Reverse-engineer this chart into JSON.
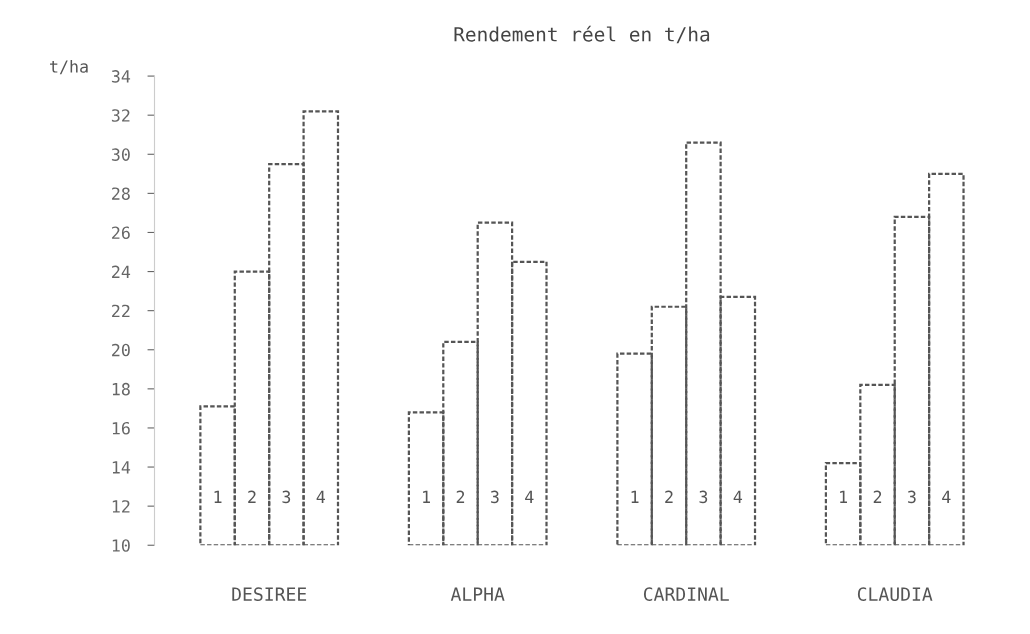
{
  "chart_data": {
    "type": "bar",
    "title": "Rendement réel en t/ha",
    "ylabel": "t/ha",
    "categories": [
      "DESIREE",
      "ALPHA",
      "CARDINAL",
      "CLAUDIA"
    ],
    "series": [
      {
        "name": "1",
        "color": "#555555",
        "values": [
          17.1,
          16.8,
          19.8,
          14.2
        ]
      },
      {
        "name": "2",
        "color": "#555555",
        "values": [
          24.0,
          20.4,
          22.2,
          18.2
        ]
      },
      {
        "name": "3",
        "color": "#555555",
        "values": [
          29.5,
          26.5,
          30.6,
          26.8
        ]
      },
      {
        "name": "4",
        "color": "#555555",
        "values": [
          32.2,
          24.5,
          22.7,
          29.0
        ]
      }
    ],
    "ylim": [
      10,
      34
    ],
    "yticks": [
      10,
      12,
      14,
      16,
      18,
      20,
      22,
      24,
      26,
      28,
      30,
      32,
      34
    ],
    "grid": false,
    "legend": false
  }
}
